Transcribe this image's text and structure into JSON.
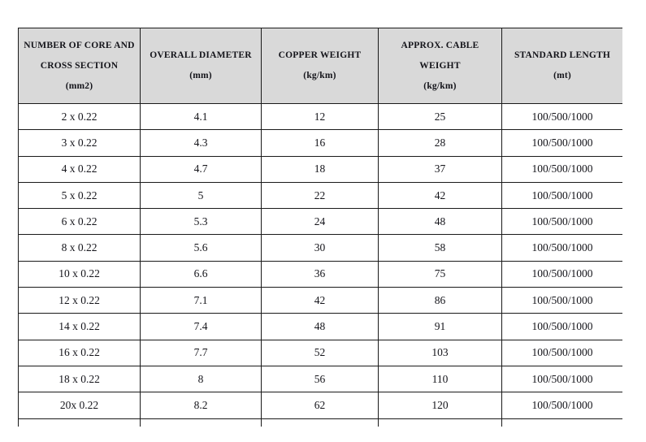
{
  "page": {
    "background": "#ffffff"
  },
  "table": {
    "colors": {
      "header_bg": "#d9d9d9",
      "border": "#1a1a1a",
      "text": "#14141a",
      "row_bg": "#ffffff"
    },
    "headers": [
      {
        "lines": [
          "NUMBER OF CORE AND",
          "CROSS SECTION",
          "(mm2)"
        ]
      },
      {
        "lines": [
          "OVERALL DIAMETER",
          "(mm)"
        ]
      },
      {
        "lines": [
          "COPPER WEIGHT",
          "(kg/km)"
        ]
      },
      {
        "lines": [
          "APPROX. CABLE",
          "WEIGHT",
          "(kg/km)"
        ]
      },
      {
        "lines": [
          "STANDARD LENGTH",
          "(mt)"
        ]
      }
    ],
    "rows": [
      [
        "2 x 0.22",
        "4.1",
        "12",
        "25",
        "100/500/1000"
      ],
      [
        "3 x 0.22",
        "4.3",
        "16",
        "28",
        "100/500/1000"
      ],
      [
        "4 x 0.22",
        "4.7",
        "18",
        "37",
        "100/500/1000"
      ],
      [
        "5 x 0.22",
        "5",
        "22",
        "42",
        "100/500/1000"
      ],
      [
        "6 x 0.22",
        "5.3",
        "24",
        "48",
        "100/500/1000"
      ],
      [
        "8 x 0.22",
        "5.6",
        "30",
        "58",
        "100/500/1000"
      ],
      [
        "10 x 0.22",
        "6.6",
        "36",
        "75",
        "100/500/1000"
      ],
      [
        "12 x 0.22",
        "7.1",
        "42",
        "86",
        "100/500/1000"
      ],
      [
        "14 x 0.22",
        "7.4",
        "48",
        "91",
        "100/500/1000"
      ],
      [
        "16 x 0.22",
        "7.7",
        "52",
        "103",
        "100/500/1000"
      ],
      [
        "18 x 0.22",
        "8",
        "56",
        "110",
        "100/500/1000"
      ],
      [
        "20x 0.22",
        "8.2",
        "62",
        "120",
        "100/500/1000"
      ]
    ]
  }
}
